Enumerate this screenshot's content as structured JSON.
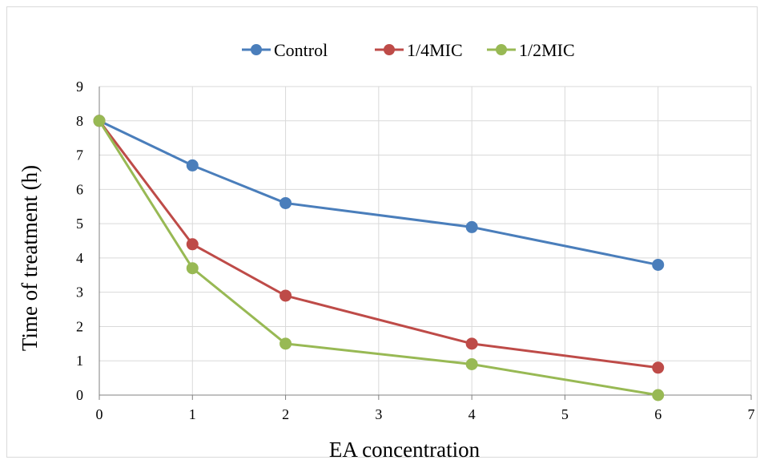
{
  "chart_data": {
    "type": "line",
    "title": "",
    "xlabel": "EA concentration",
    "ylabel": "Time of treatment (h)",
    "categories": [
      "0",
      "1",
      "2",
      "3",
      "4",
      "5",
      "6",
      "7"
    ],
    "y_ticks": [
      "0",
      "1",
      "2",
      "3",
      "4",
      "5",
      "6",
      "7",
      "8",
      "9"
    ],
    "ylim": [
      0,
      9
    ],
    "grid": true,
    "legend_position": "top",
    "series": [
      {
        "name": "Control",
        "color": "#4a7ebb",
        "points": [
          {
            "category": "0",
            "value": 8
          },
          {
            "category": "1",
            "value": 6.7
          },
          {
            "category": "2",
            "value": 5.6
          },
          {
            "category": "4",
            "value": 4.9
          },
          {
            "category": "6",
            "value": 3.8
          }
        ]
      },
      {
        "name": "1/4MIC",
        "color": "#be4b48",
        "points": [
          {
            "category": "0",
            "value": 8
          },
          {
            "category": "1",
            "value": 4.4
          },
          {
            "category": "2",
            "value": 2.9
          },
          {
            "category": "4",
            "value": 1.5
          },
          {
            "category": "6",
            "value": 0.8
          }
        ]
      },
      {
        "name": "1/2MIC",
        "color": "#98b954",
        "points": [
          {
            "category": "0",
            "value": 8
          },
          {
            "category": "1",
            "value": 3.7
          },
          {
            "category": "2",
            "value": 1.5
          },
          {
            "category": "4",
            "value": 0.9
          },
          {
            "category": "6",
            "value": 0
          }
        ]
      }
    ]
  }
}
